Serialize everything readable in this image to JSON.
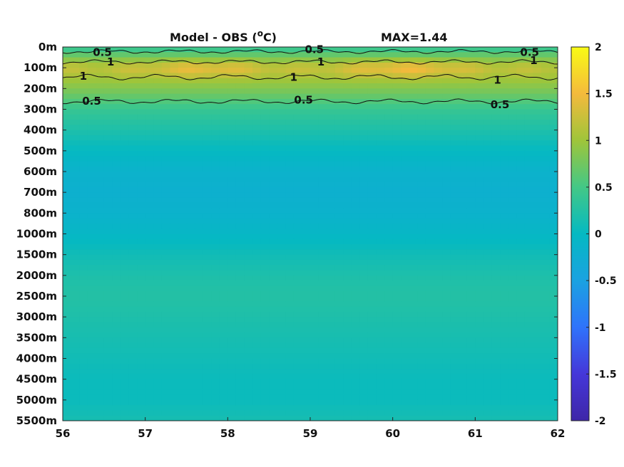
{
  "chart_data": {
    "type": "heatmap",
    "title": "Model - OBS (",
    "title_sup": "o",
    "title_unit": "C)",
    "max_text": "MAX=1.44",
    "x_ticks": [
      "56",
      "57",
      "58",
      "59",
      "60",
      "61",
      "62"
    ],
    "xlim": [
      56,
      62
    ],
    "y_ticks": [
      "0m",
      "100m",
      "200m",
      "300m",
      "400m",
      "500m",
      "600m",
      "700m",
      "800m",
      "1000m",
      "1500m",
      "2000m",
      "2500m",
      "3000m",
      "3500m",
      "4000m",
      "4500m",
      "5000m",
      "5500m"
    ],
    "colorbar": {
      "ticks": [
        "2",
        "1.5",
        "1",
        "0.5",
        "0",
        "-0.5",
        "-1",
        "-1.5",
        "-2"
      ],
      "clim": [
        -2,
        2
      ],
      "colormap": "parula"
    },
    "profile": [
      {
        "depth": "0m",
        "value": 0.35
      },
      {
        "depth": "100m",
        "value": 1.2
      },
      {
        "depth": "200m",
        "value": 0.85
      },
      {
        "depth": "300m",
        "value": 0.4
      },
      {
        "depth": "400m",
        "value": 0.2
      },
      {
        "depth": "500m",
        "value": 0.0
      },
      {
        "depth": "600m",
        "value": -0.15
      },
      {
        "depth": "700m",
        "value": -0.2
      },
      {
        "depth": "800m",
        "value": -0.15
      },
      {
        "depth": "1000m",
        "value": -0.05
      },
      {
        "depth": "1500m",
        "value": 0.1
      },
      {
        "depth": "2000m",
        "value": 0.2
      },
      {
        "depth": "2500m",
        "value": 0.25
      },
      {
        "depth": "3000m",
        "value": 0.2
      },
      {
        "depth": "3500m",
        "value": 0.15
      },
      {
        "depth": "4000m",
        "value": 0.1
      },
      {
        "depth": "4500m",
        "value": 0.05
      },
      {
        "depth": "5000m",
        "value": 0.05
      },
      {
        "depth": "5500m",
        "value": 0.15
      }
    ],
    "warm_core_regions": [
      {
        "x_range": [
          56.9,
          58.5
        ],
        "extra": 0.25
      },
      {
        "x_range": [
          59.3,
          61.0
        ],
        "extra": 0.3
      }
    ],
    "contour_labels": [
      {
        "text": "0.5",
        "x": 56.48,
        "depth_index": 0.25
      },
      {
        "text": "1",
        "x": 56.58,
        "depth_index": 0.72
      },
      {
        "text": "1",
        "x": 56.25,
        "depth_index": 1.4
      },
      {
        "text": "0.5",
        "x": 56.35,
        "depth_index": 2.6
      },
      {
        "text": "0.5",
        "x": 59.05,
        "depth_index": 0.12
      },
      {
        "text": "1",
        "x": 59.13,
        "depth_index": 0.72
      },
      {
        "text": "1",
        "x": 58.8,
        "depth_index": 1.45
      },
      {
        "text": "0.5",
        "x": 58.92,
        "depth_index": 2.55
      },
      {
        "text": "0.5",
        "x": 61.66,
        "depth_index": 0.25
      },
      {
        "text": "1",
        "x": 61.71,
        "depth_index": 0.65
      },
      {
        "text": "1",
        "x": 61.27,
        "depth_index": 1.6
      },
      {
        "text": "0.5",
        "x": 61.3,
        "depth_index": 2.78
      }
    ]
  }
}
